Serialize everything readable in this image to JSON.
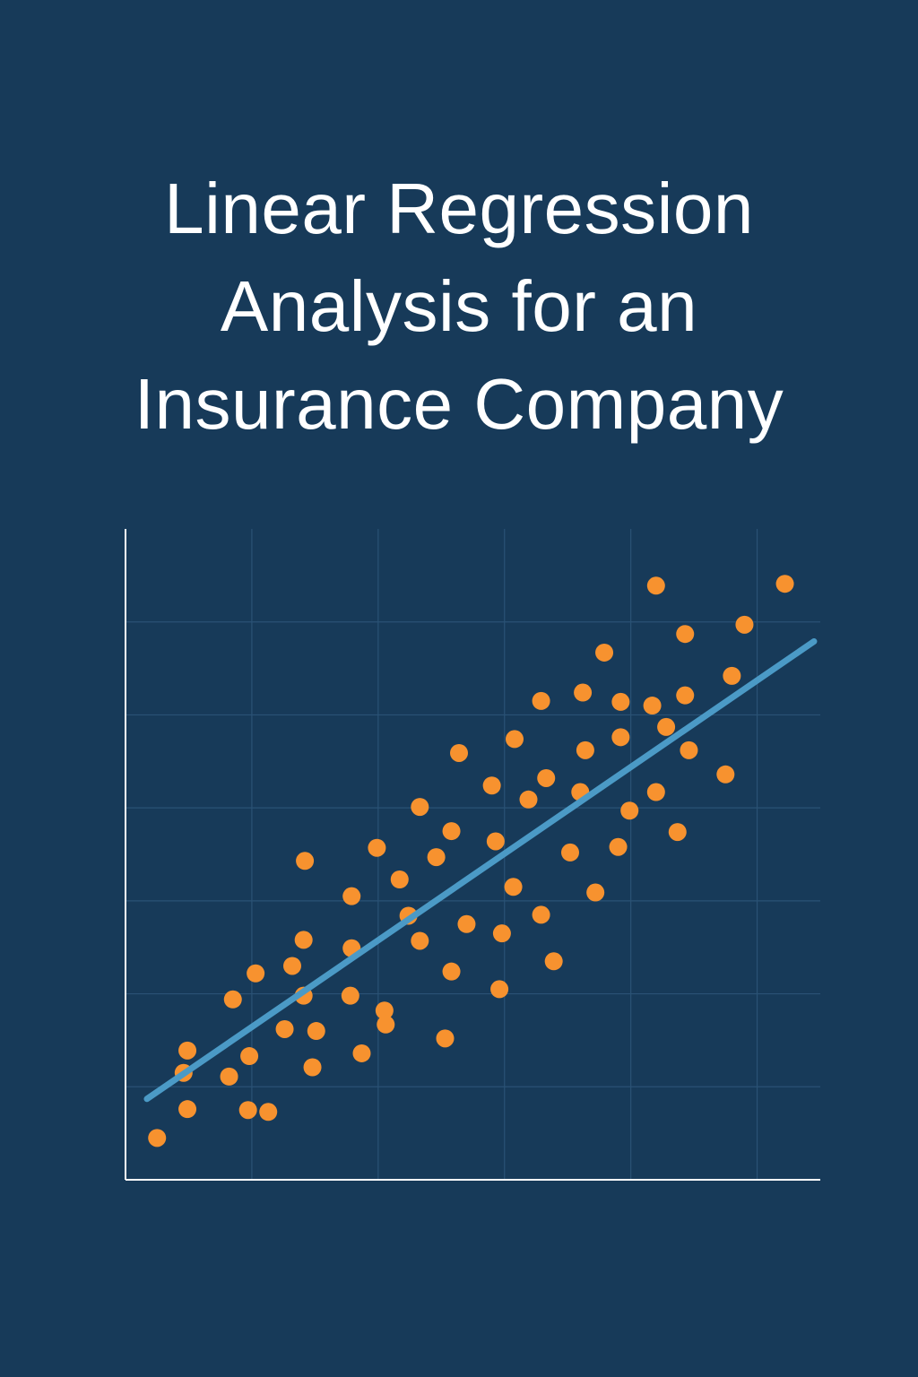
{
  "title_lines": [
    "Linear Regression",
    "Analysis for an",
    "Insurance Company"
  ],
  "colors": {
    "background": "#173a59",
    "points": "#f7922f",
    "line": "#4b9ac6",
    "grid": "#2a5275",
    "axis": "#ffffff",
    "title": "#ffffff"
  },
  "chart_data": {
    "type": "scatter",
    "title": "Linear Regression Analysis for an Insurance Company",
    "xlabel": "",
    "ylabel": "",
    "xlim": [
      0,
      5.5
    ],
    "ylim": [
      0,
      7
    ],
    "grid": true,
    "tick_labels": false,
    "points": [
      {
        "x": 0.25,
        "y": 0.45
      },
      {
        "x": 0.46,
        "y": 1.15
      },
      {
        "x": 0.49,
        "y": 0.76
      },
      {
        "x": 0.49,
        "y": 1.39
      },
      {
        "x": 0.82,
        "y": 1.11
      },
      {
        "x": 0.85,
        "y": 1.94
      },
      {
        "x": 0.97,
        "y": 0.75
      },
      {
        "x": 0.98,
        "y": 1.33
      },
      {
        "x": 1.03,
        "y": 2.22
      },
      {
        "x": 1.13,
        "y": 0.73
      },
      {
        "x": 1.26,
        "y": 1.62
      },
      {
        "x": 1.32,
        "y": 2.3
      },
      {
        "x": 1.41,
        "y": 1.98
      },
      {
        "x": 1.41,
        "y": 2.58
      },
      {
        "x": 1.42,
        "y": 3.43
      },
      {
        "x": 1.48,
        "y": 1.21
      },
      {
        "x": 1.51,
        "y": 1.6
      },
      {
        "x": 1.78,
        "y": 1.98
      },
      {
        "x": 1.79,
        "y": 2.49
      },
      {
        "x": 1.79,
        "y": 3.05
      },
      {
        "x": 1.87,
        "y": 1.36
      },
      {
        "x": 1.99,
        "y": 3.57
      },
      {
        "x": 2.05,
        "y": 1.82
      },
      {
        "x": 2.06,
        "y": 1.67
      },
      {
        "x": 2.17,
        "y": 3.23
      },
      {
        "x": 2.24,
        "y": 2.84
      },
      {
        "x": 2.33,
        "y": 2.57
      },
      {
        "x": 2.33,
        "y": 4.01
      },
      {
        "x": 2.46,
        "y": 3.47
      },
      {
        "x": 2.53,
        "y": 1.52
      },
      {
        "x": 2.58,
        "y": 2.24
      },
      {
        "x": 2.58,
        "y": 3.75
      },
      {
        "x": 2.64,
        "y": 4.59
      },
      {
        "x": 2.7,
        "y": 2.75
      },
      {
        "x": 2.9,
        "y": 4.24
      },
      {
        "x": 2.93,
        "y": 3.64
      },
      {
        "x": 2.96,
        "y": 2.05
      },
      {
        "x": 2.98,
        "y": 2.65
      },
      {
        "x": 3.07,
        "y": 3.15
      },
      {
        "x": 3.08,
        "y": 4.74
      },
      {
        "x": 3.19,
        "y": 4.09
      },
      {
        "x": 3.29,
        "y": 5.15
      },
      {
        "x": 3.29,
        "y": 2.85
      },
      {
        "x": 3.33,
        "y": 4.32
      },
      {
        "x": 3.39,
        "y": 2.35
      },
      {
        "x": 3.52,
        "y": 3.52
      },
      {
        "x": 3.6,
        "y": 4.17
      },
      {
        "x": 3.62,
        "y": 5.24
      },
      {
        "x": 3.64,
        "y": 4.62
      },
      {
        "x": 3.72,
        "y": 3.09
      },
      {
        "x": 3.79,
        "y": 5.67
      },
      {
        "x": 3.9,
        "y": 3.58
      },
      {
        "x": 3.92,
        "y": 5.14
      },
      {
        "x": 3.92,
        "y": 4.76
      },
      {
        "x": 3.99,
        "y": 3.97
      },
      {
        "x": 4.17,
        "y": 5.1
      },
      {
        "x": 4.2,
        "y": 4.17
      },
      {
        "x": 4.2,
        "y": 6.39
      },
      {
        "x": 4.28,
        "y": 4.87
      },
      {
        "x": 4.37,
        "y": 3.74
      },
      {
        "x": 4.43,
        "y": 5.21
      },
      {
        "x": 4.43,
        "y": 5.87
      },
      {
        "x": 4.46,
        "y": 4.62
      },
      {
        "x": 4.75,
        "y": 4.36
      },
      {
        "x": 4.8,
        "y": 5.42
      },
      {
        "x": 4.9,
        "y": 5.97
      },
      {
        "x": 5.22,
        "y": 6.41
      }
    ],
    "regression_line": {
      "x": [
        0.17,
        5.45
      ],
      "y": [
        0.87,
        5.79
      ]
    }
  }
}
